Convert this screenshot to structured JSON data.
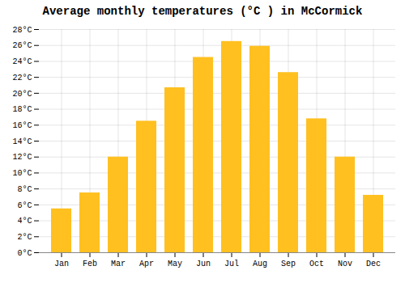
{
  "chart_data": {
    "type": "bar",
    "title": "Average monthly temperatures (°C ) in McCormick",
    "categories": [
      "Jan",
      "Feb",
      "Mar",
      "Apr",
      "May",
      "Jun",
      "Jul",
      "Aug",
      "Sep",
      "Oct",
      "Nov",
      "Dec"
    ],
    "values": [
      5.5,
      7.5,
      12.0,
      16.5,
      20.7,
      24.5,
      26.5,
      25.9,
      22.6,
      16.8,
      12.0,
      7.2
    ],
    "color": "#FFC020",
    "ylim": [
      0,
      28
    ],
    "yticks": [
      {
        "value": 0,
        "label": "0°C"
      },
      {
        "value": 2,
        "label": "2°C"
      },
      {
        "value": 4,
        "label": "4°C"
      },
      {
        "value": 6,
        "label": "6°C"
      },
      {
        "value": 8,
        "label": "8°C"
      },
      {
        "value": 10,
        "label": "10°C"
      },
      {
        "value": 12,
        "label": "12°C"
      },
      {
        "value": 14,
        "label": "14°C"
      },
      {
        "value": 16,
        "label": "16°C"
      },
      {
        "value": 18,
        "label": "18°C"
      },
      {
        "value": 20,
        "label": "20°C"
      },
      {
        "value": 22,
        "label": "22°C"
      },
      {
        "value": 24,
        "label": "24°C"
      },
      {
        "value": 26,
        "label": "26°C"
      },
      {
        "value": 28,
        "label": "28°C"
      }
    ],
    "grid": true
  }
}
